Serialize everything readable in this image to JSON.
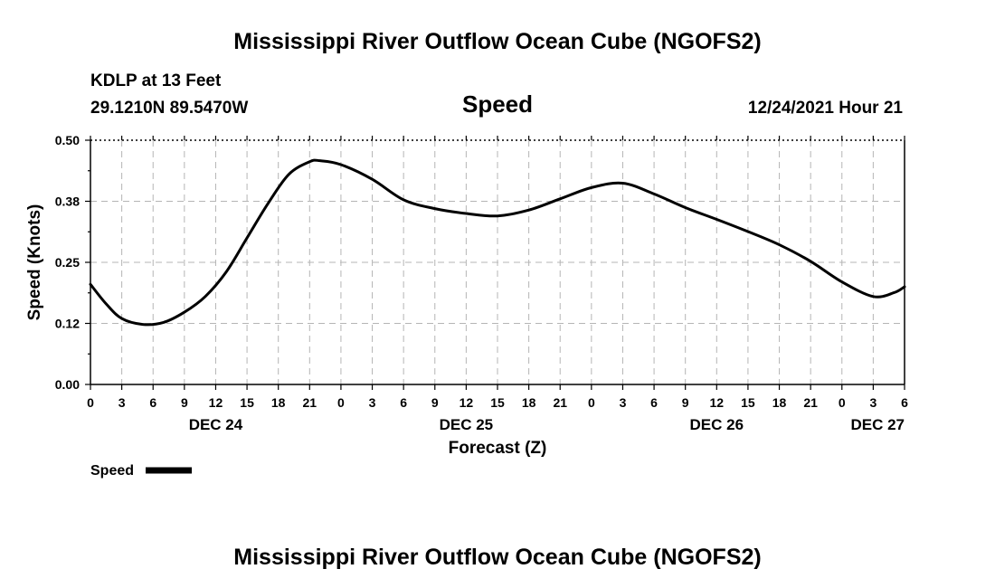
{
  "chart_data": {
    "type": "line",
    "title": "Mississippi River Outflow Ocean Cube (NGOFS2)",
    "subtitle": "Speed",
    "station": "KDLP at 13 Feet",
    "coordinates": "29.1210N  89.5470W",
    "datetime": "12/24/2021 Hour 21",
    "xlabel": "Forecast (Z)",
    "ylabel": "Speed (Knots)",
    "ylim": [
      0,
      0.5
    ],
    "yticks": [
      "0.00",
      "0.12",
      "0.25",
      "0.38",
      "0.50"
    ],
    "xlim_hours": [
      0,
      78
    ],
    "xtick_labels": [
      "0",
      "3",
      "6",
      "9",
      "12",
      "15",
      "18",
      "21",
      "0",
      "3",
      "6",
      "9",
      "12",
      "15",
      "18",
      "21",
      "0",
      "3",
      "6",
      "9",
      "12",
      "15",
      "18",
      "21",
      "0",
      "3",
      "6"
    ],
    "day_labels": [
      {
        "label": "DEC 24",
        "hour": 12
      },
      {
        "label": "DEC 25",
        "hour": 36
      },
      {
        "label": "DEC 26",
        "hour": 60
      },
      {
        "label": "DEC 27",
        "hour": 78
      }
    ],
    "grid": true,
    "legend": "bottom-left",
    "series": [
      {
        "name": "Speed",
        "x": [
          0,
          1.5,
          3,
          5,
          7,
          9,
          11,
          13,
          15,
          17,
          19,
          21,
          22,
          24,
          27,
          30,
          33,
          36,
          39,
          42,
          45,
          48,
          51,
          54,
          57,
          60,
          63,
          66,
          69,
          72,
          75,
          77,
          78
        ],
        "values": [
          0.205,
          0.165,
          0.135,
          0.123,
          0.127,
          0.148,
          0.18,
          0.23,
          0.3,
          0.37,
          0.43,
          0.456,
          0.458,
          0.45,
          0.42,
          0.378,
          0.36,
          0.35,
          0.345,
          0.357,
          0.38,
          0.403,
          0.412,
          0.39,
          0.362,
          0.338,
          0.313,
          0.286,
          0.252,
          0.21,
          0.18,
          0.188,
          0.2
        ]
      }
    ]
  },
  "footer_title": "Mississippi River Outflow Ocean Cube (NGOFS2)",
  "legend_label": "Speed"
}
